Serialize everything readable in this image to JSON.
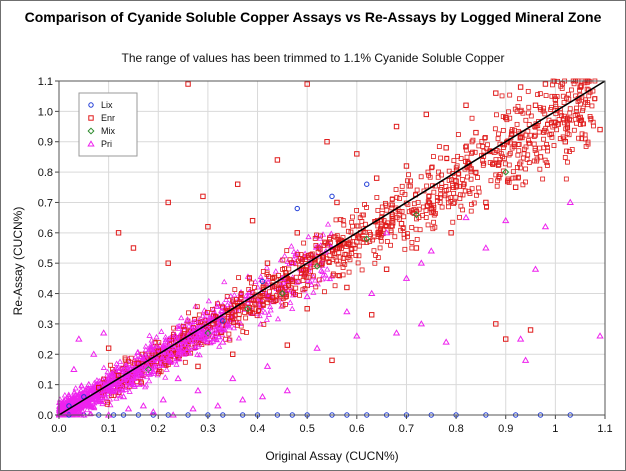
{
  "chart_data": {
    "type": "scatter",
    "title": "Comparison of Cyanide Soluble Copper Assays vs Re-Assays by Logged Mineral Zone",
    "subtitle": "The range of values has been trimmed to 1.1% Cyanide Soluble Copper",
    "xlabel": "Original Assay (CUCN%)",
    "ylabel": "Re-Assay (CUCN%)",
    "xlim": [
      0,
      1.1
    ],
    "ylim": [
      0,
      1.1
    ],
    "xticks": [
      "0.0",
      "0.1",
      "0.2",
      "0.3",
      "0.4",
      "0.5",
      "0.6",
      "0.7",
      "0.8",
      "0.9",
      "1",
      "1.1"
    ],
    "yticks": [
      "0.0",
      "0.1",
      "0.2",
      "0.3",
      "0.4",
      "0.5",
      "0.6",
      "0.7",
      "0.8",
      "0.9",
      "1.0",
      "1.1"
    ],
    "grid": true,
    "legend_position": "top-left",
    "reference_line": {
      "from": [
        0,
        0
      ],
      "to": [
        1.1,
        1.1
      ],
      "color": "#000000"
    },
    "series": [
      {
        "name": "Lix",
        "marker": "circle",
        "color": "#1f3bd6",
        "points": [
          [
            0.02,
            0.0
          ],
          [
            0.05,
            0.0
          ],
          [
            0.08,
            0.0
          ],
          [
            0.11,
            0.0
          ],
          [
            0.13,
            0.0
          ],
          [
            0.16,
            0.0
          ],
          [
            0.19,
            0.0
          ],
          [
            0.22,
            0.0
          ],
          [
            0.26,
            0.0
          ],
          [
            0.3,
            0.0
          ],
          [
            0.33,
            0.0
          ],
          [
            0.37,
            0.0
          ],
          [
            0.4,
            0.0
          ],
          [
            0.44,
            0.0
          ],
          [
            0.47,
            0.0
          ],
          [
            0.5,
            0.0
          ],
          [
            0.55,
            0.0
          ],
          [
            0.58,
            0.0
          ],
          [
            0.62,
            0.0
          ],
          [
            0.66,
            0.0
          ],
          [
            0.7,
            0.0
          ],
          [
            0.75,
            0.0
          ],
          [
            0.8,
            0.0
          ],
          [
            0.86,
            0.0
          ],
          [
            0.92,
            0.0
          ],
          [
            0.97,
            0.0
          ],
          [
            1.03,
            0.0
          ],
          [
            0.48,
            0.68
          ],
          [
            0.55,
            0.72
          ],
          [
            0.62,
            0.76
          ],
          [
            0.33,
            0.31
          ],
          [
            0.41,
            0.44
          ],
          [
            0.05,
            0.06
          ],
          [
            0.02,
            0.03
          ]
        ]
      },
      {
        "name": "Enr",
        "marker": "square",
        "color": "#e01b1b",
        "points": [
          [
            0.26,
            1.09
          ],
          [
            0.5,
            1.09
          ],
          [
            0.12,
            0.6
          ],
          [
            0.22,
            0.7
          ],
          [
            0.3,
            0.62
          ],
          [
            0.22,
            0.5
          ],
          [
            0.29,
            0.72
          ],
          [
            0.36,
            0.76
          ],
          [
            0.44,
            0.84
          ],
          [
            0.54,
            0.9
          ],
          [
            0.6,
            0.86
          ],
          [
            0.68,
            0.95
          ],
          [
            0.74,
            0.99
          ],
          [
            0.82,
            1.02
          ],
          [
            0.88,
            1.06
          ],
          [
            0.93,
            1.08
          ],
          [
            0.98,
            1.09
          ],
          [
            1.05,
            1.08
          ],
          [
            1.09,
            0.94
          ],
          [
            1.05,
            0.98
          ],
          [
            1.02,
            0.9
          ],
          [
            0.97,
            0.85
          ],
          [
            0.92,
            0.75
          ],
          [
            0.86,
            0.7
          ],
          [
            0.79,
            0.6
          ],
          [
            0.72,
            0.55
          ],
          [
            0.66,
            0.48
          ],
          [
            0.58,
            0.42
          ],
          [
            0.5,
            0.35
          ],
          [
            0.88,
            0.3
          ],
          [
            0.95,
            0.28
          ],
          [
            0.9,
            0.25
          ],
          [
            0.55,
            0.18
          ],
          [
            0.46,
            0.23
          ],
          [
            0.63,
            0.33
          ],
          [
            0.35,
            0.2
          ],
          [
            0.28,
            0.16
          ],
          [
            0.1,
            0.22
          ],
          [
            0.15,
            0.55
          ],
          [
            0.42,
            0.5
          ],
          [
            0.39,
            0.64
          ],
          [
            0.48,
            0.6
          ],
          [
            0.56,
            0.7
          ],
          [
            0.64,
            0.78
          ],
          [
            0.7,
            0.82
          ],
          [
            0.78,
            0.88
          ],
          [
            0.84,
            0.93
          ],
          [
            0.9,
            0.98
          ],
          [
            0.96,
            1.02
          ],
          [
            1.0,
            1.04
          ],
          [
            0.8,
            0.77
          ],
          [
            0.75,
            0.68
          ],
          [
            0.69,
            0.63
          ],
          [
            0.6,
            0.57
          ],
          [
            0.53,
            0.5
          ],
          [
            0.47,
            0.44
          ],
          [
            0.41,
            0.4
          ],
          [
            0.36,
            0.36
          ],
          [
            0.31,
            0.3
          ],
          [
            0.25,
            0.26
          ],
          [
            0.2,
            0.21
          ],
          [
            0.16,
            0.17
          ],
          [
            0.12,
            0.13
          ],
          [
            0.08,
            0.09
          ]
        ]
      },
      {
        "name": "Mix",
        "marker": "diamond",
        "color": "#2e8b2e",
        "points": [
          [
            0.9,
            0.8
          ],
          [
            0.62,
            0.58
          ],
          [
            0.45,
            0.4
          ],
          [
            0.3,
            0.27
          ],
          [
            0.18,
            0.15
          ],
          [
            0.72,
            0.66
          ],
          [
            0.52,
            0.49
          ],
          [
            0.38,
            0.35
          ]
        ]
      },
      {
        "name": "Pri",
        "marker": "triangle",
        "color": "#ee22ee",
        "points": [
          [
            0.04,
            0.25
          ],
          [
            0.07,
            0.2
          ],
          [
            0.03,
            0.15
          ],
          [
            0.09,
            0.27
          ],
          [
            0.06,
            0.1
          ],
          [
            0.02,
            0.06
          ],
          [
            0.05,
            0.04
          ],
          [
            0.1,
            0.07
          ],
          [
            0.13,
            0.06
          ],
          [
            0.15,
            0.1
          ],
          [
            0.17,
            0.03
          ],
          [
            0.21,
            0.05
          ],
          [
            0.24,
            0.12
          ],
          [
            0.28,
            0.08
          ],
          [
            0.35,
            0.12
          ],
          [
            0.42,
            0.16
          ],
          [
            0.52,
            0.22
          ],
          [
            0.6,
            0.26
          ],
          [
            0.68,
            0.27
          ],
          [
            0.73,
            0.3
          ],
          [
            0.78,
            0.24
          ],
          [
            0.63,
            0.4
          ],
          [
            0.7,
            0.45
          ],
          [
            0.75,
            0.54
          ],
          [
            0.82,
            0.65
          ],
          [
            0.86,
            0.55
          ],
          [
            0.9,
            0.64
          ],
          [
            0.94,
            0.18
          ],
          [
            0.93,
            0.25
          ],
          [
            0.96,
            0.48
          ],
          [
            0.98,
            0.62
          ],
          [
            1.03,
            0.7
          ],
          [
            1.09,
            0.26
          ],
          [
            0.73,
            0.5
          ],
          [
            0.66,
            0.6
          ],
          [
            0.58,
            0.34
          ],
          [
            0.5,
            0.39
          ],
          [
            0.45,
            0.45
          ],
          [
            0.33,
            0.24
          ],
          [
            0.05,
            0.0
          ],
          [
            0.1,
            0.0
          ],
          [
            0.14,
            0.02
          ],
          [
            0.19,
            0.01
          ],
          [
            0.23,
            0.0
          ],
          [
            0.27,
            0.02
          ],
          [
            0.32,
            0.03
          ],
          [
            0.37,
            0.05
          ],
          [
            0.41,
            0.06
          ],
          [
            0.46,
            0.08
          ],
          [
            0.02,
            0.01
          ],
          [
            0.03,
            0.02
          ],
          [
            0.04,
            0.01
          ],
          [
            0.06,
            0.03
          ],
          [
            0.08,
            0.05
          ],
          [
            0.11,
            0.08
          ],
          [
            0.14,
            0.11
          ],
          [
            0.18,
            0.14
          ],
          [
            0.22,
            0.18
          ],
          [
            0.26,
            0.22
          ],
          [
            0.3,
            0.26
          ],
          [
            0.34,
            0.3
          ]
        ]
      }
    ]
  }
}
